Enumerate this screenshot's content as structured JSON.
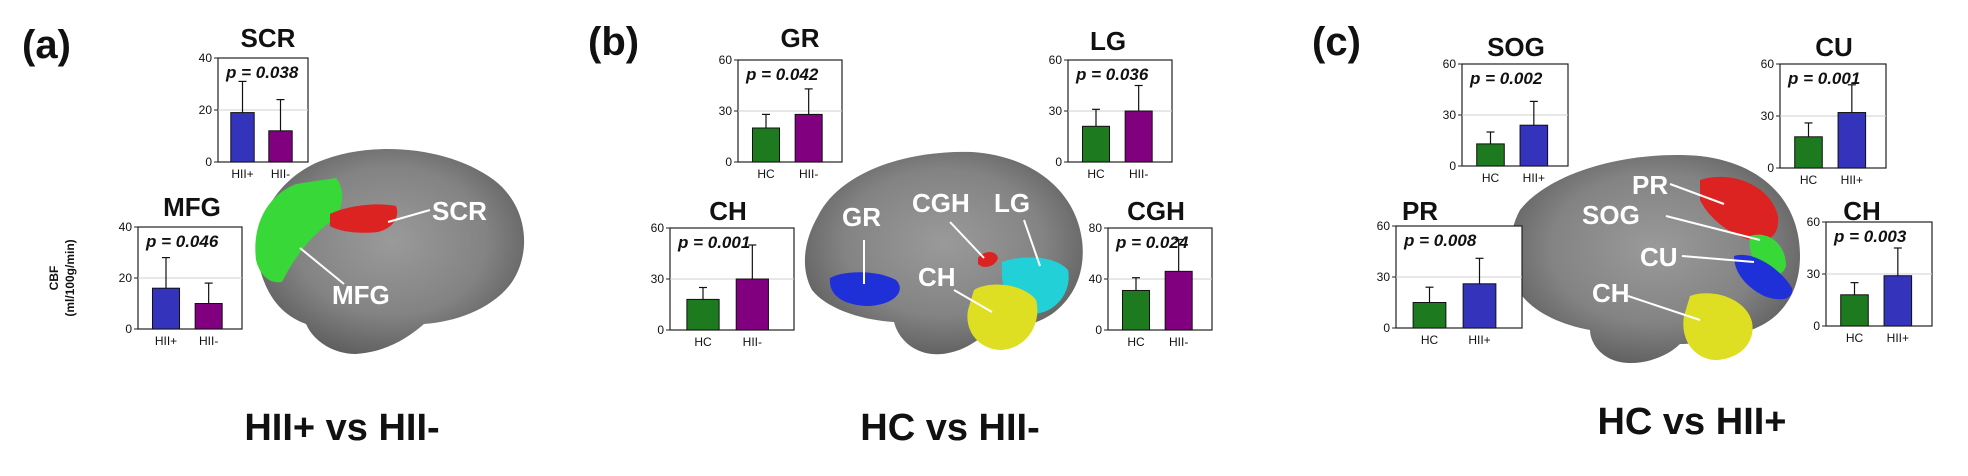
{
  "panel_labels": [
    "(a)",
    "(b)",
    "(c)"
  ],
  "comparisons": [
    "HII+ vs HII-",
    "HC vs HII-",
    "HC vs HII+"
  ],
  "y_axis_label": [
    "CBF",
    "(ml/100g/min)"
  ],
  "colors": {
    "HII+": "#3333bb",
    "HII-": "#800080",
    "HC": "#1e7a1e",
    "green_region": "#39d839",
    "red_region": "#dd2222",
    "blue_region": "#2030d8",
    "cyan_region": "#22d0d8",
    "yellow_region": "#dede22",
    "brain": "#8c8c8c"
  },
  "region_labels": {
    "a": [
      "SCR",
      "MFG"
    ],
    "b": [
      "GR",
      "CGH",
      "LG",
      "CH"
    ],
    "c": [
      "PR",
      "SOG",
      "CU",
      "CH"
    ]
  },
  "chart_data": [
    {
      "type": "bar",
      "panel": "a",
      "title": "SCR",
      "categories": [
        "HII+",
        "HII-"
      ],
      "values": [
        19,
        12
      ],
      "errors": [
        12,
        12
      ],
      "ylim": [
        0,
        40
      ],
      "yticks": [
        0,
        20,
        40
      ],
      "p_value": "p = 0.038",
      "colors": [
        "#3333bb",
        "#800080"
      ]
    },
    {
      "type": "bar",
      "panel": "a",
      "title": "MFG",
      "categories": [
        "HII+",
        "HII-"
      ],
      "values": [
        16,
        10
      ],
      "errors": [
        12,
        8
      ],
      "ylim": [
        0,
        40
      ],
      "yticks": [
        0,
        20,
        40
      ],
      "p_value": "p = 0.046",
      "colors": [
        "#3333bb",
        "#800080"
      ]
    },
    {
      "type": "bar",
      "panel": "b",
      "title": "GR",
      "categories": [
        "HC",
        "HII-"
      ],
      "values": [
        20,
        28
      ],
      "errors": [
        8,
        15
      ],
      "ylim": [
        0,
        60
      ],
      "yticks": [
        0,
        30,
        60
      ],
      "p_value": "p = 0.042",
      "colors": [
        "#1e7a1e",
        "#800080"
      ]
    },
    {
      "type": "bar",
      "panel": "b",
      "title": "CH",
      "categories": [
        "HC",
        "HII-"
      ],
      "values": [
        18,
        30
      ],
      "errors": [
        7,
        20
      ],
      "ylim": [
        0,
        60
      ],
      "yticks": [
        0,
        30,
        60
      ],
      "p_value": "p = 0.001",
      "colors": [
        "#1e7a1e",
        "#800080"
      ]
    },
    {
      "type": "bar",
      "panel": "b",
      "title": "LG",
      "categories": [
        "HC",
        "HII-"
      ],
      "values": [
        21,
        30
      ],
      "errors": [
        10,
        15
      ],
      "ylim": [
        0,
        60
      ],
      "yticks": [
        0,
        30,
        60
      ],
      "p_value": "p = 0.036",
      "colors": [
        "#1e7a1e",
        "#800080"
      ]
    },
    {
      "type": "bar",
      "panel": "b",
      "title": "CGH",
      "categories": [
        "HC",
        "HII-"
      ],
      "values": [
        31,
        46
      ],
      "errors": [
        10,
        25
      ],
      "ylim": [
        0,
        80
      ],
      "yticks": [
        0,
        40,
        80
      ],
      "p_value": "p = 0.024",
      "colors": [
        "#1e7a1e",
        "#800080"
      ]
    },
    {
      "type": "bar",
      "panel": "c",
      "title": "SOG",
      "categories": [
        "HC",
        "HII+"
      ],
      "values": [
        13,
        24
      ],
      "errors": [
        7,
        14
      ],
      "ylim": [
        0,
        60
      ],
      "yticks": [
        0,
        30,
        60
      ],
      "p_value": "p = 0.002",
      "colors": [
        "#1e7a1e",
        "#3333bb"
      ]
    },
    {
      "type": "bar",
      "panel": "c",
      "title": "PR",
      "categories": [
        "HC",
        "HII+"
      ],
      "values": [
        15,
        26
      ],
      "errors": [
        9,
        15
      ],
      "ylim": [
        0,
        60
      ],
      "yticks": [
        0,
        30,
        60
      ],
      "p_value": "p = 0.008",
      "colors": [
        "#1e7a1e",
        "#3333bb"
      ]
    },
    {
      "type": "bar",
      "panel": "c",
      "title": "CU",
      "categories": [
        "HC",
        "HII+"
      ],
      "values": [
        18,
        32
      ],
      "errors": [
        8,
        16
      ],
      "ylim": [
        0,
        60
      ],
      "yticks": [
        0,
        30,
        60
      ],
      "p_value": "p = 0.001",
      "colors": [
        "#1e7a1e",
        "#3333bb"
      ]
    },
    {
      "type": "bar",
      "panel": "c",
      "title": "CH",
      "categories": [
        "HC",
        "HII+"
      ],
      "values": [
        18,
        29
      ],
      "errors": [
        7,
        16
      ],
      "ylim": [
        0,
        60
      ],
      "yticks": [
        0,
        30,
        60
      ],
      "p_value": "p = 0.003",
      "colors": [
        "#1e7a1e",
        "#3333bb"
      ]
    }
  ]
}
